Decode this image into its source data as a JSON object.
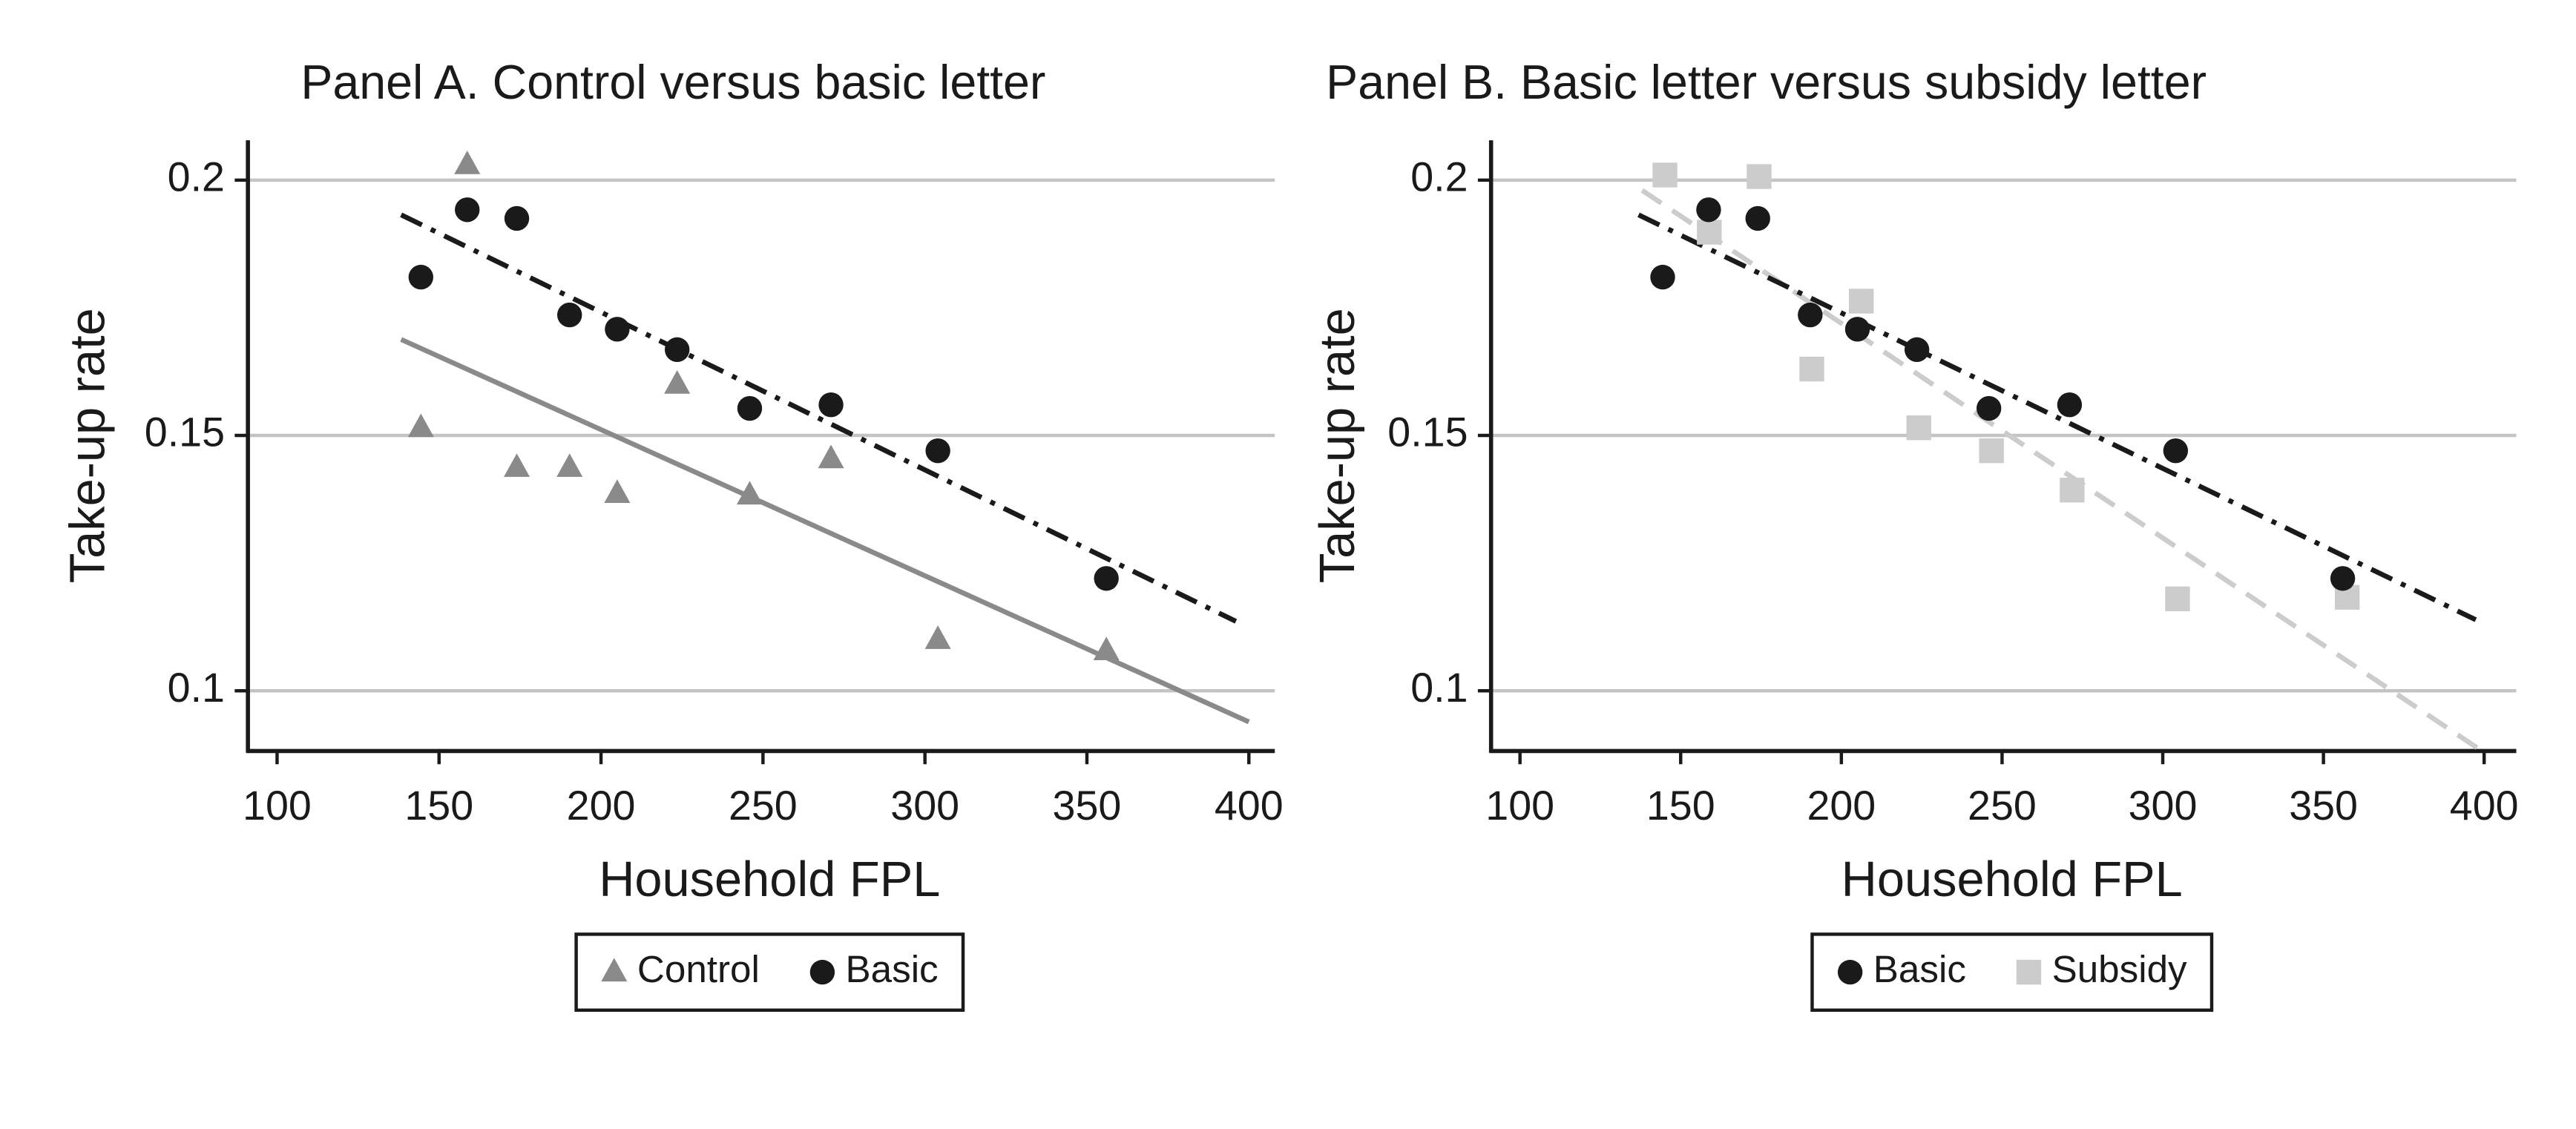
{
  "chart_data": [
    {
      "type": "scatter",
      "title": "Panel A. Control versus basic letter",
      "xlabel": "Household FPL",
      "ylabel": "Take-up rate",
      "xlim": [
        91,
        408
      ],
      "ylim": [
        0.0882,
        0.2078
      ],
      "xticks": [
        100,
        150,
        200,
        250,
        300,
        350,
        400
      ],
      "yticks": [
        0.1,
        0.15,
        0.2
      ],
      "grid": true,
      "legend": "bottom",
      "series": [
        {
          "name": "Control",
          "color": "#8a8a8a",
          "marker": "triangle",
          "linestyle": "solid",
          "x": [
            144.4,
            158.7,
            174,
            190.3,
            205,
            223.5,
            245.9,
            271,
            304,
            356
          ],
          "values": [
            0.1515,
            0.203,
            0.1437,
            0.1437,
            0.1386,
            0.16,
            0.1383,
            0.1454,
            0.11,
            0.1078
          ],
          "fit": {
            "x": [
              138.3,
              400
            ],
            "values": [
              0.1688,
              0.0939
            ]
          }
        },
        {
          "name": "Basic",
          "color": "#1a1a1a",
          "marker": "circle",
          "linestyle": "dashdot",
          "x": [
            144.4,
            158.7,
            174,
            190.3,
            205,
            223.5,
            245.9,
            271,
            304,
            356
          ],
          "values": [
            0.181,
            0.1942,
            0.1925,
            0.1736,
            0.1708,
            0.1668,
            0.1553,
            0.156,
            0.147,
            0.122
          ],
          "fit": {
            "x": [
              138.3,
              396
            ],
            "values": [
              0.1932,
              0.1136
            ]
          }
        }
      ]
    },
    {
      "type": "scatter",
      "title": "Panel B. Basic letter versus subsidy letter",
      "xlabel": "Household FPL",
      "ylabel": "Take-up rate",
      "xlim": [
        91,
        410
      ],
      "ylim": [
        0.0882,
        0.2078
      ],
      "xticks": [
        100,
        150,
        200,
        250,
        300,
        350,
        400
      ],
      "yticks": [
        0.1,
        0.15,
        0.2
      ],
      "grid": true,
      "legend": "bottom",
      "series": [
        {
          "name": "Subsidy",
          "color": "#cccccc",
          "marker": "square",
          "linestyle": "dashed",
          "x": [
            145.1,
            158.9,
            174.4,
            190.8,
            206.2,
            224.1,
            246.7,
            271.8,
            304.6,
            357.4
          ],
          "values": [
            0.201,
            0.1898,
            0.2007,
            0.163,
            0.1763,
            0.1515,
            0.147,
            0.1393,
            0.118,
            0.1183
          ],
          "fit": {
            "x": [
              138,
              401
            ],
            "values": [
              0.198,
              0.0875
            ]
          }
        },
        {
          "name": "Basic",
          "color": "#1a1a1a",
          "marker": "circle",
          "linestyle": "dashdot",
          "x": [
            144.4,
            158.7,
            174,
            190.3,
            205,
            223.5,
            245.9,
            271,
            304,
            356
          ],
          "values": [
            0.181,
            0.1942,
            0.1925,
            0.1736,
            0.1708,
            0.1668,
            0.1553,
            0.156,
            0.147,
            0.122
          ],
          "fit": {
            "x": [
              136.9,
              397.4
            ],
            "values": [
              0.1932,
              0.1139
            ]
          }
        }
      ]
    }
  ]
}
